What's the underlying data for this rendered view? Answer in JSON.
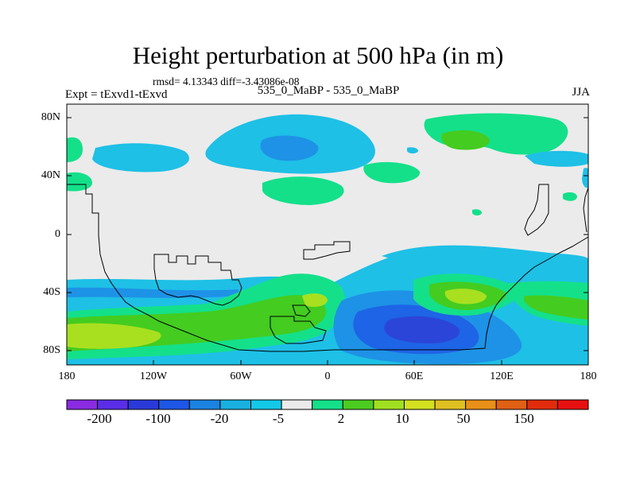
{
  "title": "Height perturbation at 500 hPa (in m)",
  "stats": "rmsd= 4.13343 diff=-3.43086e-08",
  "left_label": "Expt = tExvd1-tExvd",
  "center_label": "535_0_MaBP - 535_0_MaBP",
  "right_label": "JJA",
  "lat_ticks": [
    "80N",
    "40N",
    "0",
    "40S",
    "80S"
  ],
  "lon_ticks": [
    "180",
    "120W",
    "60W",
    "0",
    "60E",
    "120E",
    "180"
  ],
  "colorbar": {
    "labels": [
      "-200",
      "-100",
      "-20",
      "-5",
      "2",
      "10",
      "50",
      "150"
    ],
    "colors": [
      "#8a2be2",
      "#5a2ee6",
      "#2a3ad8",
      "#1e56e6",
      "#1a82e0",
      "#18b0e0",
      "#14c8e8",
      "#ebebeb",
      "#14e08a",
      "#4ccc20",
      "#a0e020",
      "#d4e020",
      "#e0c020",
      "#e89018",
      "#e06014",
      "#e02c0c",
      "#e81010"
    ]
  },
  "palette": {
    "background": "#ebebeb",
    "light_blue": "#1ec0e6",
    "mid_blue": "#1e92e6",
    "blue": "#1e64e6",
    "dark_blue": "#2b45d8",
    "teal_green": "#1ee08c",
    "green": "#44cc20",
    "yellow_green": "#a8e020"
  }
}
